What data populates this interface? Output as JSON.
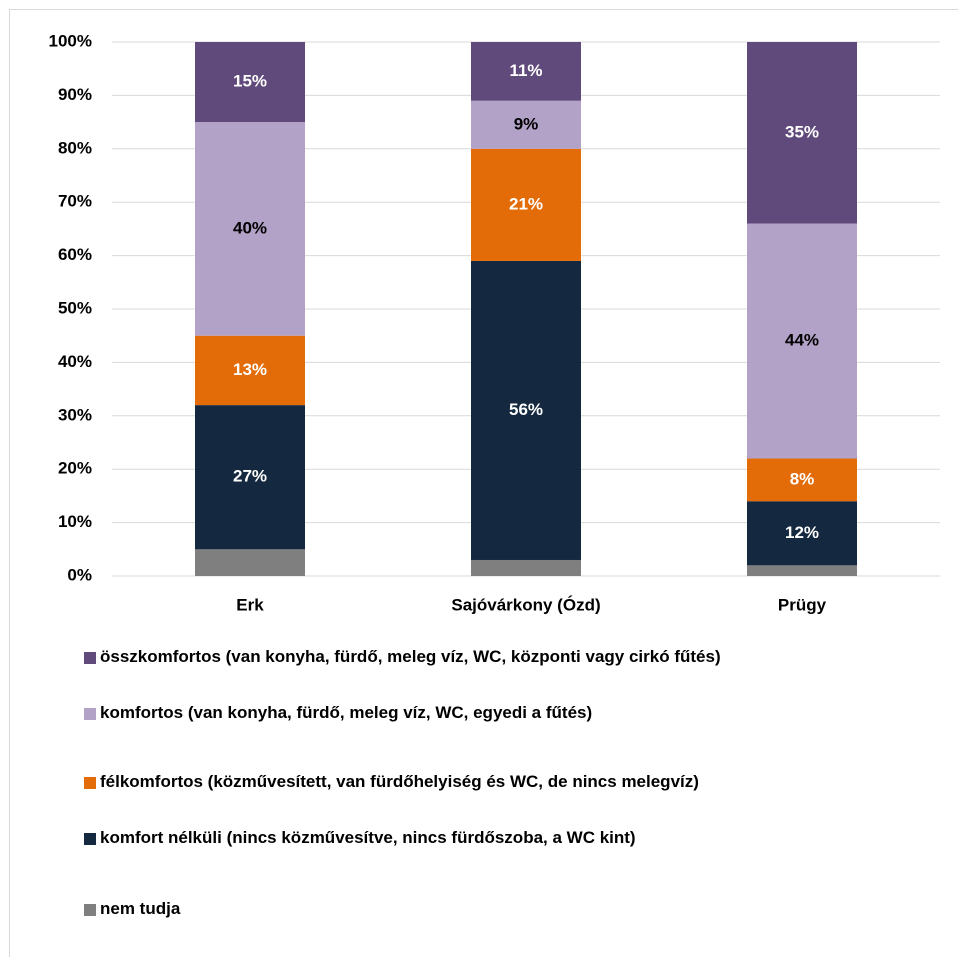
{
  "chart_data": {
    "type": "bar",
    "stacked": true,
    "categories": [
      "Erk",
      "Sajóvárkony (Ózd)",
      "Prügy"
    ],
    "ylim": [
      0,
      100
    ],
    "yticks": [
      {
        "value": 0,
        "label": "0%"
      },
      {
        "value": 10,
        "label": "10%"
      },
      {
        "value": 20,
        "label": "20%"
      },
      {
        "value": 30,
        "label": "30%"
      },
      {
        "value": 40,
        "label": "40%"
      },
      {
        "value": 50,
        "label": "50%"
      },
      {
        "value": 60,
        "label": "60%"
      },
      {
        "value": 70,
        "label": "70%"
      },
      {
        "value": 80,
        "label": "80%"
      },
      {
        "value": 90,
        "label": "90%"
      },
      {
        "value": 100,
        "label": "100%"
      }
    ],
    "grid": true,
    "series": [
      {
        "name": "nem tudja",
        "color": "#7f7f7f",
        "values": [
          5,
          3,
          2
        ],
        "data_labels": false
      },
      {
        "name": "komfort nélküli (nincs közművesítve, nincs fürdőszoba, a WC kint)",
        "color": "#142840",
        "label_color": "#ffffff",
        "values": [
          27,
          56,
          12
        ],
        "value_labels": [
          "27%",
          "56%",
          "12%"
        ]
      },
      {
        "name": "félkomfortos (közművesített, van fürdőhelyiség és WC, de nincs melegvíz)",
        "color": "#e36c09",
        "label_color": "#ffffff",
        "values": [
          13,
          21,
          8
        ],
        "value_labels": [
          "13%",
          "21%",
          "8%"
        ]
      },
      {
        "name": "komfortos (van konyha, fürdő, meleg víz, WC, egyedi a fűtés)",
        "color": "#b3a2c7",
        "label_color": "#000000",
        "values": [
          40,
          9,
          44
        ],
        "value_labels": [
          "40%",
          "9%",
          "44%"
        ]
      },
      {
        "name": "összkomfortos (van konyha, fürdő, meleg víz, WC, központi vagy cirkó fűtés)",
        "color": "#604a7b",
        "label_color": "#ffffff",
        "values": [
          15,
          11,
          35
        ],
        "value_labels": [
          "15%",
          "11%",
          "35%"
        ]
      }
    ]
  }
}
